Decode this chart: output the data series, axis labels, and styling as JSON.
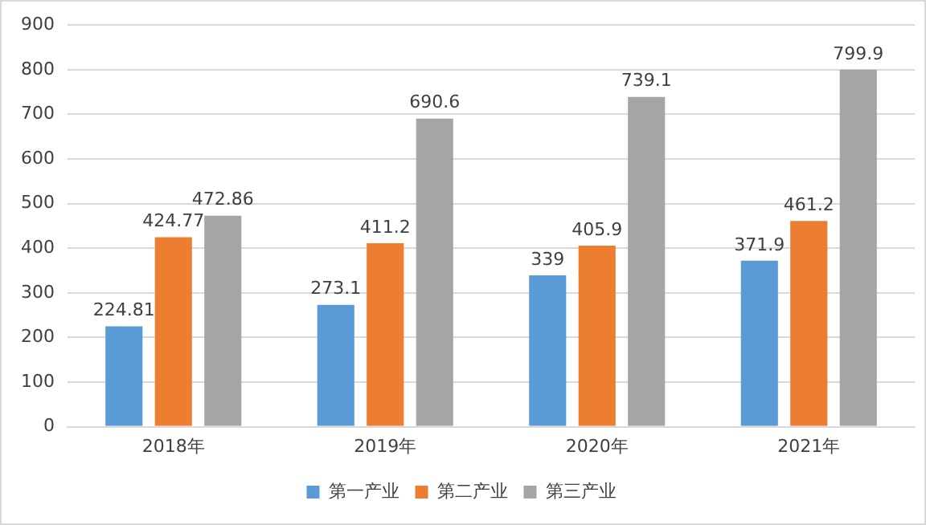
{
  "chart_data": {
    "type": "bar",
    "categories": [
      "2018年",
      "2019年",
      "2020年",
      "2021年"
    ],
    "series": [
      {
        "name": "第一产业",
        "color": "#5b9bd5",
        "values": [
          224.81,
          273.1,
          339,
          371.9
        ]
      },
      {
        "name": "第二产业",
        "color": "#ed7d31",
        "values": [
          424.77,
          411.2,
          405.9,
          461.2
        ]
      },
      {
        "name": "第三产业",
        "color": "#a5a5a5",
        "values": [
          472.86,
          690.6,
          739.1,
          799.9
        ]
      }
    ],
    "ylim": [
      0,
      900
    ],
    "yticks": [
      0,
      100,
      200,
      300,
      400,
      500,
      600,
      700,
      800,
      900
    ],
    "grid": "y",
    "legend": "bottom",
    "data_labels": true
  }
}
